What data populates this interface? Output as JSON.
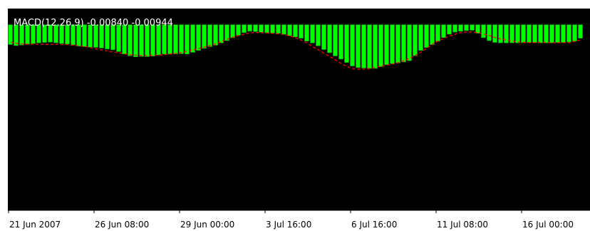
{
  "chart_data": {
    "type": "bar",
    "title": "MACD(12,26,9) -0.00840 -0.00944",
    "background_color": "#000000",
    "frame_color": "#ffffff",
    "bar_color": "#00ff00",
    "bar_edge_color": "#009900",
    "signal_color": "#ff0000",
    "signal_style": "dashed",
    "grid": false,
    "legend": "none",
    "ylim": [
      -0.115,
      0.01
    ],
    "x_tick_labels": [
      "21 Jun 2007",
      "26 Jun 08:00",
      "29 Jun 00:00",
      "3 Jul 16:00",
      "6 Jul 16:00",
      "11 Jul 08:00",
      "16 Jul 00:00"
    ],
    "x_tick_indices": [
      0,
      15,
      30,
      45,
      60,
      75,
      90
    ],
    "series": [
      {
        "kind": "histogram",
        "values": [
          -0.0123,
          -0.013,
          -0.0126,
          -0.0121,
          -0.0117,
          -0.0113,
          -0.011,
          -0.0108,
          -0.0112,
          -0.0117,
          -0.012,
          -0.0126,
          -0.0133,
          -0.0136,
          -0.0139,
          -0.0141,
          -0.0145,
          -0.0151,
          -0.0156,
          -0.0167,
          -0.0182,
          -0.0193,
          -0.0199,
          -0.0197,
          -0.0198,
          -0.0195,
          -0.0188,
          -0.0182,
          -0.0182,
          -0.0182,
          -0.018,
          -0.0182,
          -0.0172,
          -0.016,
          -0.0147,
          -0.0136,
          -0.0127,
          -0.0113,
          -0.0099,
          -0.0082,
          -0.0066,
          -0.005,
          -0.0041,
          -0.0043,
          -0.0047,
          -0.005,
          -0.0052,
          -0.0054,
          -0.006,
          -0.0069,
          -0.0076,
          -0.0084,
          -0.0102,
          -0.0113,
          -0.0131,
          -0.0154,
          -0.0174,
          -0.0194,
          -0.0213,
          -0.0234,
          -0.0256,
          -0.0266,
          -0.0269,
          -0.0271,
          -0.0271,
          -0.026,
          -0.0248,
          -0.0241,
          -0.0237,
          -0.0231,
          -0.0223,
          -0.0193,
          -0.016,
          -0.0142,
          -0.0124,
          -0.0103,
          -0.008,
          -0.0059,
          -0.0046,
          -0.0041,
          -0.0037,
          -0.0035,
          -0.0053,
          -0.0081,
          -0.0099,
          -0.011,
          -0.0113,
          -0.0113,
          -0.0112,
          -0.0113,
          -0.0112,
          -0.0111,
          -0.0111,
          -0.0113,
          -0.0113,
          -0.0113,
          -0.0111,
          -0.0111,
          -0.0107,
          -0.0102,
          -0.0084
        ]
      },
      {
        "kind": "signal",
        "values": [
          -0.0109,
          -0.0115,
          -0.0119,
          -0.0121,
          -0.0121,
          -0.0121,
          -0.0122,
          -0.0122,
          -0.0121,
          -0.0123,
          -0.0123,
          -0.0128,
          -0.013,
          -0.0135,
          -0.0141,
          -0.0149,
          -0.0156,
          -0.0164,
          -0.017,
          -0.0174,
          -0.0181,
          -0.0186,
          -0.0189,
          -0.0191,
          -0.0191,
          -0.0189,
          -0.0188,
          -0.0185,
          -0.0182,
          -0.0178,
          -0.0172,
          -0.0164,
          -0.0156,
          -0.0148,
          -0.0139,
          -0.0129,
          -0.0118,
          -0.0104,
          -0.009,
          -0.0078,
          -0.0068,
          -0.0058,
          -0.0051,
          -0.0048,
          -0.0049,
          -0.0051,
          -0.0054,
          -0.0057,
          -0.0061,
          -0.0069,
          -0.0081,
          -0.0096,
          -0.0114,
          -0.0137,
          -0.0157,
          -0.0177,
          -0.0198,
          -0.0219,
          -0.0241,
          -0.0259,
          -0.0272,
          -0.0276,
          -0.0275,
          -0.0271,
          -0.0264,
          -0.0257,
          -0.025,
          -0.0244,
          -0.0235,
          -0.0223,
          -0.0208,
          -0.019,
          -0.017,
          -0.0146,
          -0.0121,
          -0.0101,
          -0.0084,
          -0.007,
          -0.0059,
          -0.0049,
          -0.0045,
          -0.0045,
          -0.005,
          -0.0058,
          -0.0068,
          -0.008,
          -0.0089,
          -0.0096,
          -0.0102,
          -0.0107,
          -0.0109,
          -0.0111,
          -0.0111,
          -0.0109,
          -0.0109,
          -0.0111,
          -0.0111,
          -0.0111,
          -0.0111,
          -0.0103,
          -0.0094
        ]
      }
    ]
  }
}
